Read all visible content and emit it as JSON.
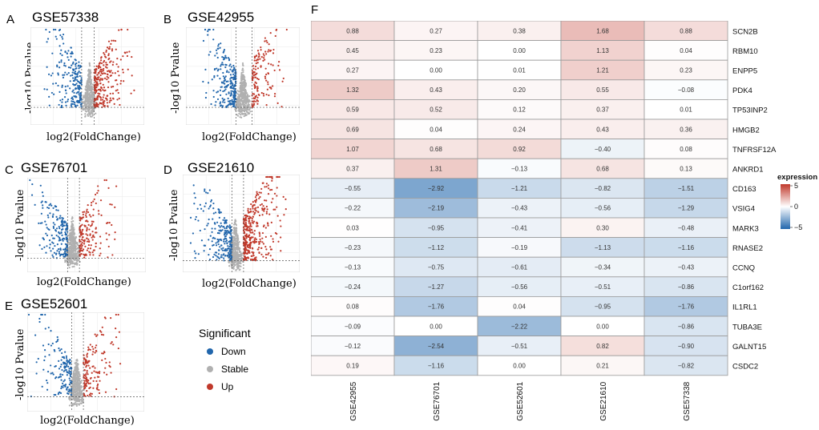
{
  "panels": [
    {
      "letter": "A",
      "title": "GSE57338",
      "ylabel": "-log10 Pvalue",
      "xlabel": "log2(FoldChange)"
    },
    {
      "letter": "B",
      "title": "GSE42955",
      "ylabel": "-log10 Pvalue",
      "xlabel": "log2(FoldChange)"
    },
    {
      "letter": "C",
      "title": "GSE76701",
      "ylabel": "-log10 Pvalue",
      "xlabel": "log2(FoldChange)"
    },
    {
      "letter": "D",
      "title": "GSE21610",
      "ylabel": "-log10 Pvalue",
      "xlabel": "log2(FoldChange)"
    },
    {
      "letter": "E",
      "title": "GSE52601",
      "ylabel": "-log10 Pvalue",
      "xlabel": "log2(FoldChange)"
    }
  ],
  "legend": {
    "title": "Significant",
    "items": [
      {
        "label": "Down",
        "color": "#2166ac"
      },
      {
        "label": "Stable",
        "color": "#b0b0b0"
      },
      {
        "label": "Up",
        "color": "#c0392b"
      }
    ]
  },
  "heatmap_letter": "F",
  "chart_data": {
    "type": "heatmap",
    "columns": [
      "GSE42955",
      "GSE76701",
      "GSE52601",
      "GSE21610",
      "GSE57338"
    ],
    "rows": [
      "SCN2B",
      "RBM10",
      "ENPP5",
      "PDK4",
      "TP53INP2",
      "HMGB2",
      "TNFRSF12A",
      "ANKRD1",
      "CD163",
      "VSIG4",
      "MARK3",
      "RNASE2",
      "CCNQ",
      "C1orf162",
      "IL1RL1",
      "TUBA3E",
      "GALNT15",
      "CSDC2"
    ],
    "values": [
      [
        0.88,
        0.27,
        0.38,
        1.68,
        0.88
      ],
      [
        0.45,
        0.23,
        0.0,
        1.13,
        0.04
      ],
      [
        0.27,
        0.0,
        0.01,
        1.21,
        0.23
      ],
      [
        1.32,
        0.43,
        0.2,
        0.55,
        -0.08
      ],
      [
        0.59,
        0.52,
        0.12,
        0.37,
        0.01
      ],
      [
        0.69,
        0.04,
        0.24,
        0.43,
        0.36
      ],
      [
        1.07,
        0.68,
        0.92,
        -0.4,
        0.08
      ],
      [
        0.37,
        1.31,
        -0.13,
        0.68,
        0.13
      ],
      [
        -0.55,
        -2.92,
        -1.21,
        -0.82,
        -1.51
      ],
      [
        -0.22,
        -2.19,
        -0.43,
        -0.56,
        -1.29
      ],
      [
        0.03,
        -0.95,
        -0.41,
        0.3,
        -0.48
      ],
      [
        -0.23,
        -1.12,
        -0.19,
        -1.13,
        -1.16
      ],
      [
        -0.13,
        -0.75,
        -0.61,
        -0.34,
        -0.43
      ],
      [
        -0.24,
        -1.27,
        -0.56,
        -0.51,
        -0.86
      ],
      [
        0.08,
        -1.76,
        0.04,
        -0.95,
        -1.76
      ],
      [
        -0.09,
        0.0,
        -2.22,
        0.0,
        -0.86
      ],
      [
        -0.12,
        -2.54,
        -0.51,
        0.82,
        -0.9
      ],
      [
        0.19,
        -1.16,
        0.0,
        0.21,
        -0.82
      ]
    ],
    "value_labels": [
      [
        "0.88",
        "0.27",
        "0.38",
        "1.68",
        "0.88"
      ],
      [
        "0.45",
        "0.23",
        "0.00",
        "1.13",
        "0.04"
      ],
      [
        "0.27",
        "0.00",
        "0.01",
        "1.21",
        "0.23"
      ],
      [
        "1.32",
        "0.43",
        "0.20",
        "0.55",
        "−0.08"
      ],
      [
        "0.59",
        "0.52",
        "0.12",
        "0.37",
        "0.01"
      ],
      [
        "0.69",
        "0.04",
        "0.24",
        "0.43",
        "0.36"
      ],
      [
        "1.07",
        "0.68",
        "0.92",
        "−0.40",
        "0.08"
      ],
      [
        "0.37",
        "1.31",
        "−0.13",
        "0.68",
        "0.13"
      ],
      [
        "−0.55",
        "−2.92",
        "−1.21",
        "−0.82",
        "−1.51"
      ],
      [
        "−0.22",
        "−2.19",
        "−0.43",
        "−0.56",
        "−1.29"
      ],
      [
        "0.03",
        "−0.95",
        "−0.41",
        "0.30",
        "−0.48"
      ],
      [
        "−0.23",
        "−1.12",
        "−0.19",
        "−1.13",
        "−1.16"
      ],
      [
        "−0.13",
        "−0.75",
        "−0.61",
        "−0.34",
        "−0.43"
      ],
      [
        "−0.24",
        "−1.27",
        "−0.56",
        "−0.51",
        "−0.86"
      ],
      [
        "0.08",
        "−1.76",
        "0.04",
        "−0.95",
        "−1.76"
      ],
      [
        "−0.09",
        "0.00",
        "−2.22",
        "0.00",
        "−0.86"
      ],
      [
        "−0.12",
        "−2.54",
        "−0.51",
        "0.82",
        "−0.90"
      ],
      [
        "0.19",
        "−1.16",
        "0.00",
        "0.21",
        "−0.82"
      ]
    ],
    "colorbar": {
      "title": "expression",
      "ticks": [
        "5",
        "0",
        "−5"
      ],
      "range": [
        -5,
        5
      ],
      "low": "#2166ac",
      "mid": "#ffffff",
      "high": "#c0392b"
    }
  }
}
